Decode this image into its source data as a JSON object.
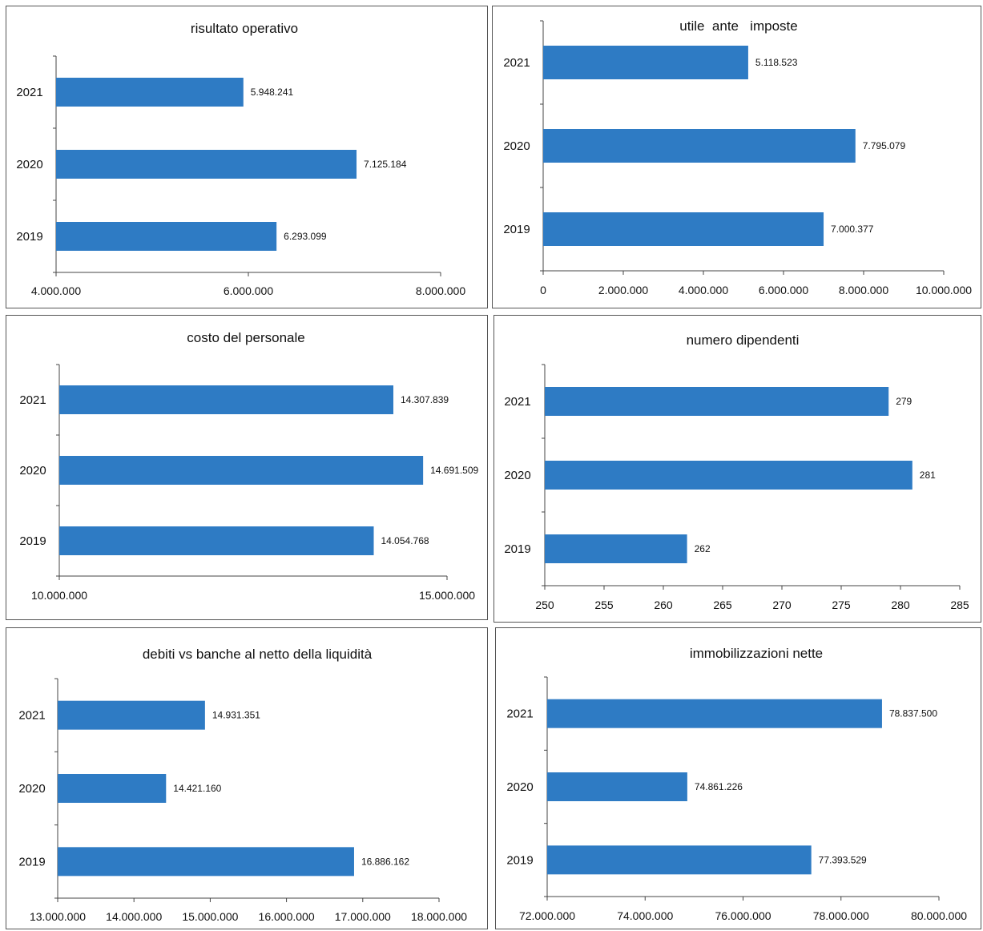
{
  "colors": {
    "bar": "#2e7bc4",
    "axis": "#444444",
    "text": "#111111"
  },
  "chart_data": [
    {
      "type": "bar",
      "orientation": "horizontal",
      "title": "risultato operativo",
      "categories": [
        "2021",
        "2020",
        "2019"
      ],
      "values": [
        5948241,
        7125184,
        6293099
      ],
      "value_labels": [
        "5.948.241",
        "7.125.184",
        "6.293.099"
      ],
      "xlim": [
        4000000,
        8000000
      ],
      "xticks": [
        4000000,
        6000000,
        8000000
      ],
      "xtick_labels": [
        "4.000.000",
        "6.000.000",
        "8.000.000"
      ],
      "grid": false
    },
    {
      "type": "bar",
      "orientation": "horizontal",
      "title": "utile  ante   imposte",
      "categories": [
        "2021",
        "2020",
        "2019"
      ],
      "values": [
        5118523,
        7795079,
        7000377
      ],
      "value_labels": [
        "5.118.523",
        "7.795.079",
        "7.000.377"
      ],
      "xlim": [
        0,
        10000000
      ],
      "xticks": [
        0,
        2000000,
        4000000,
        6000000,
        8000000,
        10000000
      ],
      "xtick_labels": [
        "0",
        "2.000.000",
        "4.000.000",
        "6.000.000",
        "8.000.000",
        "10.000.000"
      ],
      "grid": false
    },
    {
      "type": "bar",
      "orientation": "horizontal",
      "title": "costo del personale",
      "categories": [
        "2021",
        "2020",
        "2019"
      ],
      "values": [
        14307839,
        14691509,
        14054768
      ],
      "value_labels": [
        "14.307.839",
        "14.691.509",
        "14.054.768"
      ],
      "xlim": [
        10000000,
        15000000
      ],
      "xticks": [
        10000000,
        15000000
      ],
      "xtick_labels": [
        "10.000.000",
        "15.000.000"
      ],
      "grid": false
    },
    {
      "type": "bar",
      "orientation": "horizontal",
      "title": "numero dipendenti",
      "categories": [
        "2021",
        "2020",
        "2019"
      ],
      "values": [
        279,
        281,
        262
      ],
      "value_labels": [
        "279",
        "281",
        "262"
      ],
      "xlim": [
        250,
        285
      ],
      "xticks": [
        250,
        255,
        260,
        265,
        270,
        275,
        280,
        285
      ],
      "xtick_labels": [
        "250",
        "255",
        "260",
        "265",
        "270",
        "275",
        "280",
        "285"
      ],
      "grid": false
    },
    {
      "type": "bar",
      "orientation": "horizontal",
      "title": "debiti vs banche al netto della liquidità",
      "categories": [
        "2021",
        "2020",
        "2019"
      ],
      "values": [
        14931351,
        14421160,
        16886162
      ],
      "value_labels": [
        "14.931.351",
        "14.421.160",
        "16.886.162"
      ],
      "xlim": [
        13000000,
        18000000
      ],
      "xticks": [
        13000000,
        14000000,
        15000000,
        16000000,
        17000000,
        18000000
      ],
      "xtick_labels": [
        "13.000.000",
        "14.000.000",
        "15.000.000",
        "16.000.000",
        "17.000.000",
        "18.000.000"
      ],
      "grid": false
    },
    {
      "type": "bar",
      "orientation": "horizontal",
      "title": "immobilizzazioni nette",
      "categories": [
        "2021",
        "2020",
        "2019"
      ],
      "values": [
        78837500,
        74861226,
        77393529
      ],
      "value_labels": [
        "78.837.500",
        "74.861.226",
        "77.393.529"
      ],
      "xlim": [
        72000000,
        80000000
      ],
      "xticks": [
        72000000,
        74000000,
        76000000,
        78000000,
        80000000
      ],
      "xtick_labels": [
        "72.000.000",
        "74.000.000",
        "76.000.000",
        "78.000.000",
        "80.000.000"
      ],
      "grid": false
    }
  ]
}
